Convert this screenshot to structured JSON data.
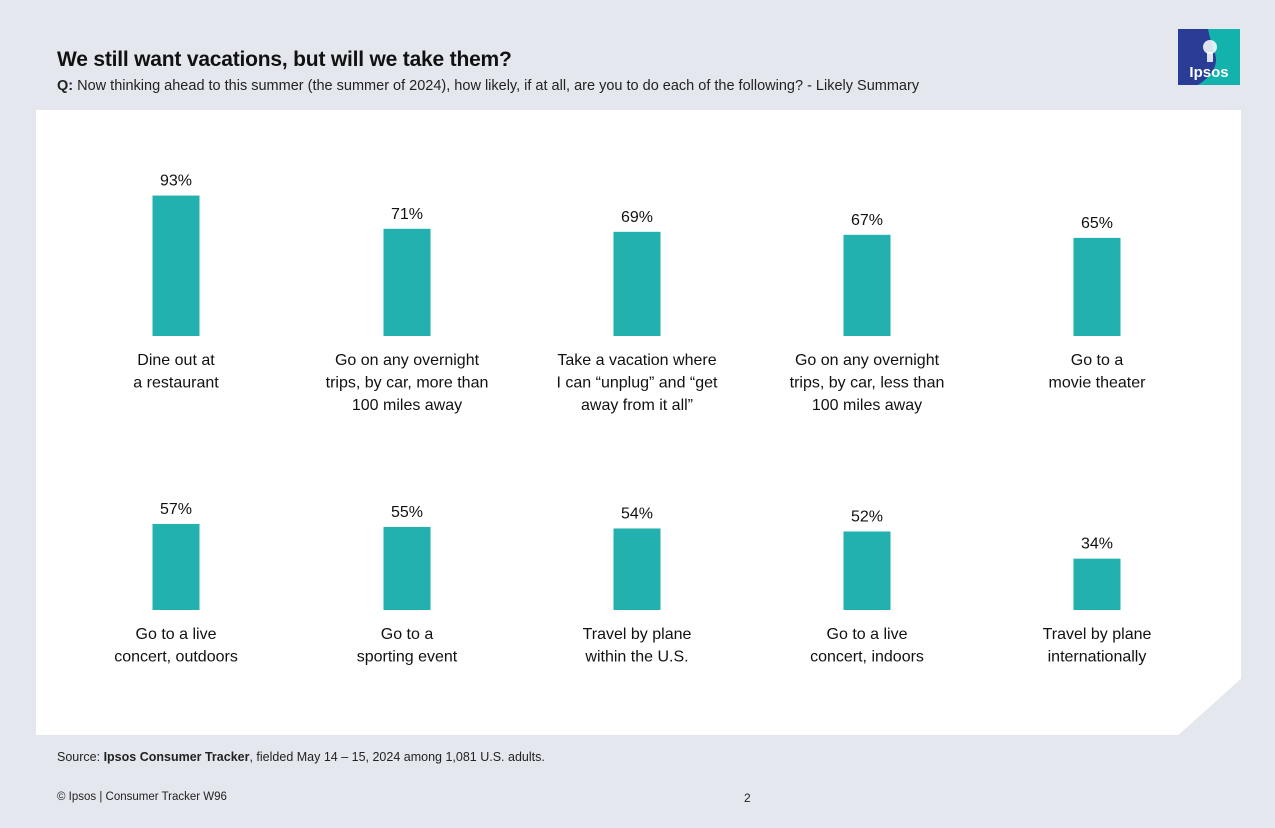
{
  "slide": {
    "title": "We still want vacations, but will we take them?",
    "question_label": "Q:",
    "question_text": "Now thinking ahead to this summer (the summer of 2024), how likely, if at all, are you to do each of the following? - Likely Summary",
    "logo_text": "Ipsos",
    "source_label": "Source:",
    "source_name": "Ipsos Consumer Tracker",
    "source_detail": ", fielded May 14 – 15, 2024 among 1,081 U.S. adults.",
    "copyright": "© Ipsos | Consumer Tracker W96",
    "page_number": "2"
  },
  "colors": {
    "bar": "#22b1ae",
    "background": "#e4e8ee",
    "panel": "#ffffff",
    "logo_blue": "#2a3c96",
    "logo_teal": "#14b2ad"
  },
  "chart_data": {
    "type": "bar",
    "unit": "%",
    "ylim": [
      0,
      100
    ],
    "series": [
      {
        "values": [
          93,
          71,
          69,
          67,
          65,
          57,
          55,
          54,
          52,
          34
        ],
        "labels": [
          "93%",
          "71%",
          "69%",
          "67%",
          "65%",
          "57%",
          "55%",
          "54%",
          "52%",
          "34%"
        ]
      }
    ],
    "categories": [
      [
        "Dine out at",
        "a restaurant"
      ],
      [
        "Go on any overnight",
        "trips, by car, more than",
        "100 miles away"
      ],
      [
        "Take a vacation where",
        "I can “unplug” and “get",
        "away from it all”"
      ],
      [
        "Go on any overnight",
        "trips, by car, less than",
        "100 miles away"
      ],
      [
        "Go to a",
        "movie theater"
      ],
      [
        "Go to a live",
        "concert, outdoors"
      ],
      [
        "Go to a",
        "sporting event"
      ],
      [
        "Travel by plane",
        "within the U.S."
      ],
      [
        "Go to a live",
        "concert, indoors"
      ],
      [
        "Travel by plane",
        "internationally"
      ]
    ]
  }
}
